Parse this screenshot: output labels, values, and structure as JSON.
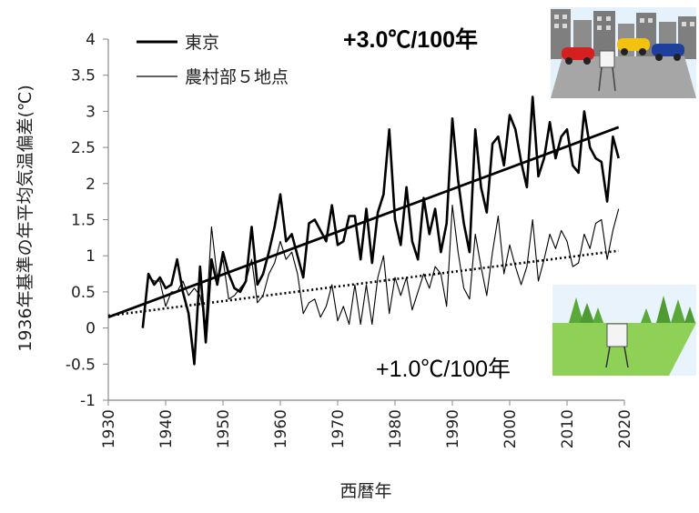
{
  "chart_data": {
    "type": "line",
    "title": "",
    "xlabel": "西暦年",
    "ylabel": "1936年基準の年平均気温偏差(℃)",
    "xlim": [
      1930,
      2020
    ],
    "ylim": [
      -1,
      4
    ],
    "xticks": [
      "1930",
      "1940",
      "1950",
      "1960",
      "1970",
      "1980",
      "1990",
      "2000",
      "2010",
      "2020"
    ],
    "yticks": [
      "4",
      "3.5",
      "3",
      "2.5",
      "2",
      "1.5",
      "1",
      "0.5",
      "0",
      "-0.5",
      "-1"
    ],
    "legend_position": "top-left",
    "series": [
      {
        "name": "東京",
        "x": [
          1936,
          1937,
          1938,
          1939,
          1940,
          1941,
          1942,
          1943,
          1944,
          1945,
          1946,
          1947,
          1948,
          1949,
          1950,
          1951,
          1952,
          1953,
          1954,
          1955,
          1956,
          1957,
          1958,
          1959,
          1960,
          1961,
          1962,
          1963,
          1964,
          1965,
          1966,
          1967,
          1968,
          1969,
          1970,
          1971,
          1972,
          1973,
          1974,
          1975,
          1976,
          1977,
          1978,
          1979,
          1980,
          1981,
          1982,
          1983,
          1984,
          1985,
          1986,
          1987,
          1988,
          1989,
          1990,
          1991,
          1992,
          1993,
          1994,
          1995,
          1996,
          1997,
          1998,
          1999,
          2000,
          2001,
          2002,
          2003,
          2004,
          2005,
          2006,
          2007,
          2008,
          2009,
          2010,
          2011,
          2012,
          2013,
          2014,
          2015,
          2016,
          2017,
          2018,
          2019
        ],
        "values": [
          0.0,
          0.75,
          0.6,
          0.7,
          0.55,
          0.6,
          0.95,
          0.5,
          0.2,
          -0.5,
          0.85,
          -0.2,
          0.95,
          0.6,
          1.05,
          0.75,
          0.55,
          0.5,
          0.65,
          1.4,
          0.6,
          0.75,
          1.05,
          1.4,
          1.85,
          1.2,
          1.3,
          1.0,
          0.7,
          1.45,
          1.5,
          1.35,
          1.2,
          1.7,
          1.15,
          1.2,
          1.55,
          1.55,
          0.95,
          1.65,
          0.9,
          1.6,
          1.85,
          2.75,
          1.5,
          1.15,
          1.95,
          1.2,
          0.95,
          1.8,
          1.3,
          1.65,
          1.05,
          1.45,
          2.9,
          2.05,
          1.45,
          1.05,
          2.75,
          1.95,
          1.6,
          2.55,
          2.65,
          2.25,
          2.95,
          2.75,
          2.3,
          1.95,
          3.2,
          2.1,
          2.35,
          2.85,
          2.35,
          2.65,
          2.75,
          2.25,
          2.15,
          3.0,
          2.5,
          2.35,
          2.3,
          1.75,
          2.65,
          2.35
        ]
      },
      {
        "name": "農村部５地点",
        "x": [
          1936,
          1937,
          1938,
          1939,
          1940,
          1941,
          1942,
          1943,
          1944,
          1945,
          1946,
          1947,
          1948,
          1949,
          1950,
          1951,
          1952,
          1953,
          1954,
          1955,
          1956,
          1957,
          1958,
          1959,
          1960,
          1961,
          1962,
          1963,
          1964,
          1965,
          1966,
          1967,
          1968,
          1969,
          1970,
          1971,
          1972,
          1973,
          1974,
          1975,
          1976,
          1977,
          1978,
          1979,
          1980,
          1981,
          1982,
          1983,
          1984,
          1985,
          1986,
          1987,
          1988,
          1989,
          1990,
          1991,
          1992,
          1993,
          1994,
          1995,
          1996,
          1997,
          1998,
          1999,
          2000,
          2001,
          2002,
          2003,
          2004,
          2005,
          2006,
          2007,
          2008,
          2009,
          2010,
          2011,
          2012,
          2013,
          2014,
          2015,
          2016,
          2017,
          2018,
          2019
        ],
        "values": [
          0.0,
          0.7,
          0.65,
          0.65,
          0.3,
          0.5,
          0.5,
          0.65,
          0.45,
          0.55,
          0.45,
          0.05,
          1.4,
          0.7,
          0.95,
          0.4,
          0.45,
          0.55,
          0.65,
          0.95,
          0.35,
          0.45,
          0.75,
          0.9,
          1.2,
          0.95,
          1.05,
          0.75,
          0.2,
          0.35,
          0.4,
          0.15,
          0.3,
          0.6,
          0.1,
          0.3,
          0.05,
          0.6,
          0.05,
          0.6,
          0.05,
          0.7,
          1.0,
          0.2,
          0.7,
          0.45,
          0.7,
          0.25,
          0.5,
          0.75,
          0.55,
          0.85,
          0.75,
          0.3,
          1.7,
          1.05,
          0.55,
          0.4,
          1.3,
          0.85,
          0.45,
          1.05,
          1.55,
          0.75,
          1.15,
          0.85,
          0.6,
          0.85,
          1.5,
          0.65,
          0.95,
          1.3,
          1.1,
          1.35,
          1.2,
          0.85,
          0.9,
          1.3,
          1.1,
          1.45,
          1.5,
          0.95,
          1.35,
          1.65
        ]
      }
    ],
    "trend_lines": [
      {
        "name": "東京",
        "x": [
          1930,
          2019
        ],
        "y": [
          0.15,
          2.78
        ],
        "annotation": "+3.0℃/100年",
        "style": "solid"
      },
      {
        "name": "農村部５地点",
        "x": [
          1930,
          2019
        ],
        "y": [
          0.17,
          1.07
        ],
        "annotation": "+1.0℃/100年",
        "style": "dotted"
      }
    ]
  },
  "colors": {
    "line": "#000000",
    "axis": "#888888",
    "sky": "#e6f2fb",
    "road": "#a6a6a6",
    "field": "#8fd157",
    "tree": "#5aa83a"
  },
  "illustrations": {
    "urban": {
      "icon": "city-traffic-icon"
    },
    "rural": {
      "icon": "countryside-icon"
    }
  }
}
